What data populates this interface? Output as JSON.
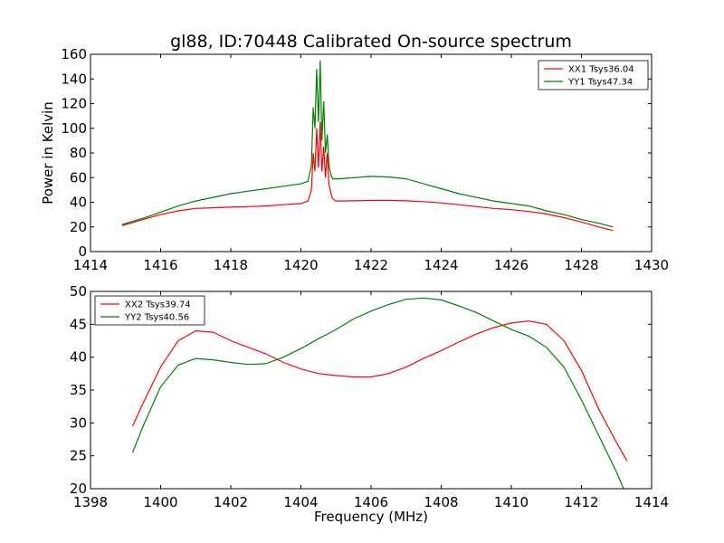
{
  "chart_data": [
    {
      "type": "line",
      "title": "gl88, ID:70448 Calibrated On-source spectrum",
      "xlabel": "",
      "ylabel": "Power in Kelvin",
      "xlim": [
        1414,
        1430
      ],
      "ylim": [
        0,
        160
      ],
      "xticks": [
        1414,
        1416,
        1418,
        1420,
        1422,
        1424,
        1426,
        1428,
        1430
      ],
      "yticks": [
        0,
        20,
        40,
        60,
        80,
        100,
        120,
        140,
        160
      ],
      "legend_position": "top-right",
      "grid": false,
      "series": [
        {
          "name": "XX1 Tsys36.04",
          "color": "#ff0000",
          "x": [
            1414.9,
            1415.5,
            1416.0,
            1416.5,
            1417.0,
            1417.5,
            1418.0,
            1418.5,
            1419.0,
            1419.5,
            1420.0,
            1420.2,
            1420.3,
            1420.35,
            1420.4,
            1420.45,
            1420.5,
            1420.55,
            1420.6,
            1420.65,
            1420.7,
            1420.75,
            1420.8,
            1420.85,
            1420.9,
            1421.0,
            1421.1,
            1421.5,
            1422.0,
            1422.5,
            1423.0,
            1423.5,
            1424.0,
            1424.5,
            1425.0,
            1425.5,
            1426.0,
            1426.5,
            1427.0,
            1427.5,
            1428.0,
            1428.5,
            1428.9
          ],
          "y": [
            21,
            26,
            30,
            33,
            35,
            35.5,
            36,
            36.5,
            37,
            38,
            39,
            41,
            50,
            80,
            65,
            100,
            68,
            105,
            65,
            85,
            60,
            80,
            55,
            48,
            43,
            41,
            41,
            41.2,
            41.5,
            41.5,
            41.2,
            40.5,
            39.5,
            38,
            36.5,
            35,
            34,
            32.5,
            30.5,
            27.5,
            24,
            20,
            17
          ]
        },
        {
          "name": "YY1 Tsys47.34",
          "color": "#008000",
          "x": [
            1414.9,
            1415.5,
            1416.0,
            1416.5,
            1417.0,
            1417.5,
            1418.0,
            1418.5,
            1419.0,
            1419.5,
            1420.0,
            1420.2,
            1420.3,
            1420.35,
            1420.4,
            1420.45,
            1420.5,
            1420.55,
            1420.6,
            1420.65,
            1420.7,
            1420.75,
            1420.8,
            1420.85,
            1420.9,
            1421.0,
            1421.1,
            1421.5,
            1422.0,
            1422.5,
            1423.0,
            1423.5,
            1424.0,
            1424.5,
            1425.0,
            1425.5,
            1426.0,
            1426.5,
            1427.0,
            1427.5,
            1428.0,
            1428.5,
            1428.9
          ],
          "y": [
            22,
            27,
            32,
            37,
            41,
            44,
            47,
            49,
            51,
            53,
            55,
            57,
            70,
            117,
            100,
            148,
            105,
            155,
            90,
            122,
            80,
            95,
            70,
            63,
            59,
            59,
            59,
            60,
            61,
            60.5,
            59,
            55,
            51,
            47,
            44,
            41,
            39,
            37,
            33,
            30,
            26,
            23,
            20
          ]
        }
      ]
    },
    {
      "type": "line",
      "title": "",
      "xlabel": "Frequency (MHz)",
      "ylabel": "",
      "xlim": [
        1398,
        1414
      ],
      "ylim": [
        20,
        50
      ],
      "xticks": [
        1398,
        1400,
        1402,
        1404,
        1406,
        1408,
        1410,
        1412,
        1414
      ],
      "yticks": [
        20,
        25,
        30,
        35,
        40,
        45,
        50
      ],
      "legend_position": "top-left",
      "grid": false,
      "series": [
        {
          "name": "XX2 Tsys39.74",
          "color": "#ff0000",
          "x": [
            1399.2,
            1399.5,
            1400.0,
            1400.5,
            1401.0,
            1401.5,
            1402.0,
            1402.5,
            1403.0,
            1403.5,
            1404.0,
            1404.5,
            1405.0,
            1405.5,
            1406.0,
            1406.5,
            1407.0,
            1407.5,
            1408.0,
            1408.5,
            1409.0,
            1409.5,
            1410.0,
            1410.5,
            1411.0,
            1411.5,
            1412.0,
            1412.5,
            1413.0,
            1413.3
          ],
          "y": [
            29.5,
            33,
            38.5,
            42.5,
            44,
            43.8,
            42.5,
            41.5,
            40.5,
            39.2,
            38.2,
            37.5,
            37.2,
            37.0,
            37.0,
            37.5,
            38.5,
            39.8,
            41.0,
            42.3,
            43.5,
            44.5,
            45.2,
            45.5,
            45.0,
            42.5,
            38,
            32,
            27,
            24.2
          ]
        },
        {
          "name": "YY2 Tsys40.56",
          "color": "#008000",
          "x": [
            1399.2,
            1399.5,
            1400.0,
            1400.5,
            1401.0,
            1401.5,
            1402.0,
            1402.5,
            1403.0,
            1403.5,
            1404.0,
            1404.5,
            1405.0,
            1405.5,
            1406.0,
            1406.5,
            1407.0,
            1407.5,
            1408.0,
            1408.5,
            1409.0,
            1409.5,
            1410.0,
            1410.5,
            1411.0,
            1411.5,
            1412.0,
            1412.5,
            1413.0,
            1413.2
          ],
          "y": [
            25.5,
            29.5,
            35.5,
            38.8,
            39.8,
            39.6,
            39.2,
            38.9,
            39.0,
            40.0,
            41.3,
            42.8,
            44.2,
            45.8,
            47.0,
            48.0,
            48.8,
            49.0,
            48.7,
            47.8,
            46.8,
            45.5,
            44.2,
            43.2,
            41.5,
            38.5,
            33.5,
            28,
            22.5,
            20
          ]
        }
      ]
    }
  ]
}
